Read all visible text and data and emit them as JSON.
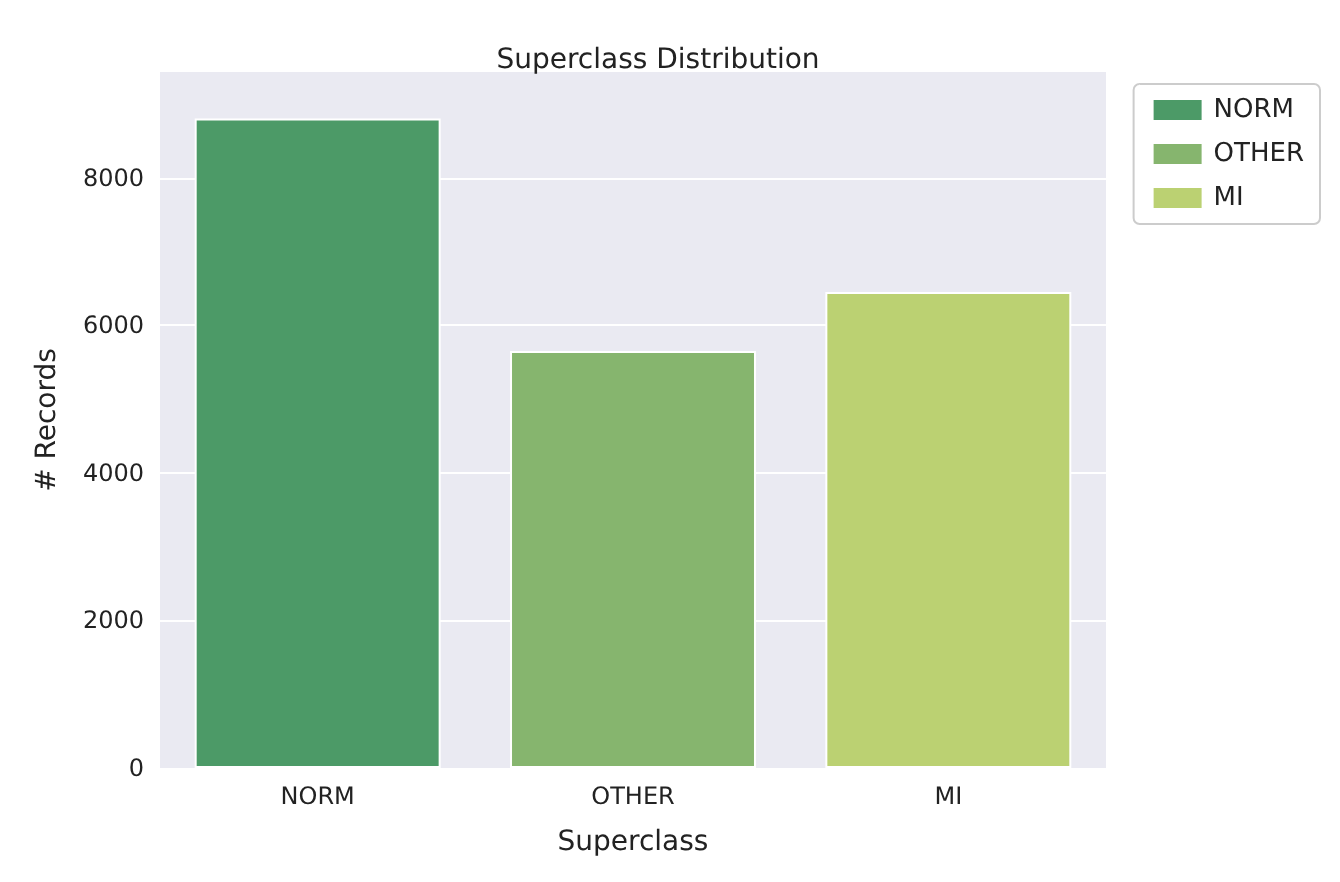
{
  "chart_data": {
    "type": "bar",
    "title": "Superclass Distribution",
    "xlabel": "Superclass",
    "ylabel": "# Records",
    "categories": [
      "NORM",
      "OTHER",
      "MI"
    ],
    "series": [
      {
        "name": "NORM",
        "color": "#4c9a67",
        "values": [
          8800,
          null,
          null
        ]
      },
      {
        "name": "OTHER",
        "color": "#86b56e",
        "values": [
          null,
          5650,
          null
        ]
      },
      {
        "name": "MI",
        "color": "#bbd172",
        "values": [
          null,
          null,
          6450
        ]
      }
    ],
    "ylim": [
      0,
      9430
    ],
    "yticks": [
      0,
      2000,
      4000,
      6000,
      8000
    ],
    "grid": "y",
    "legend": "top right"
  }
}
